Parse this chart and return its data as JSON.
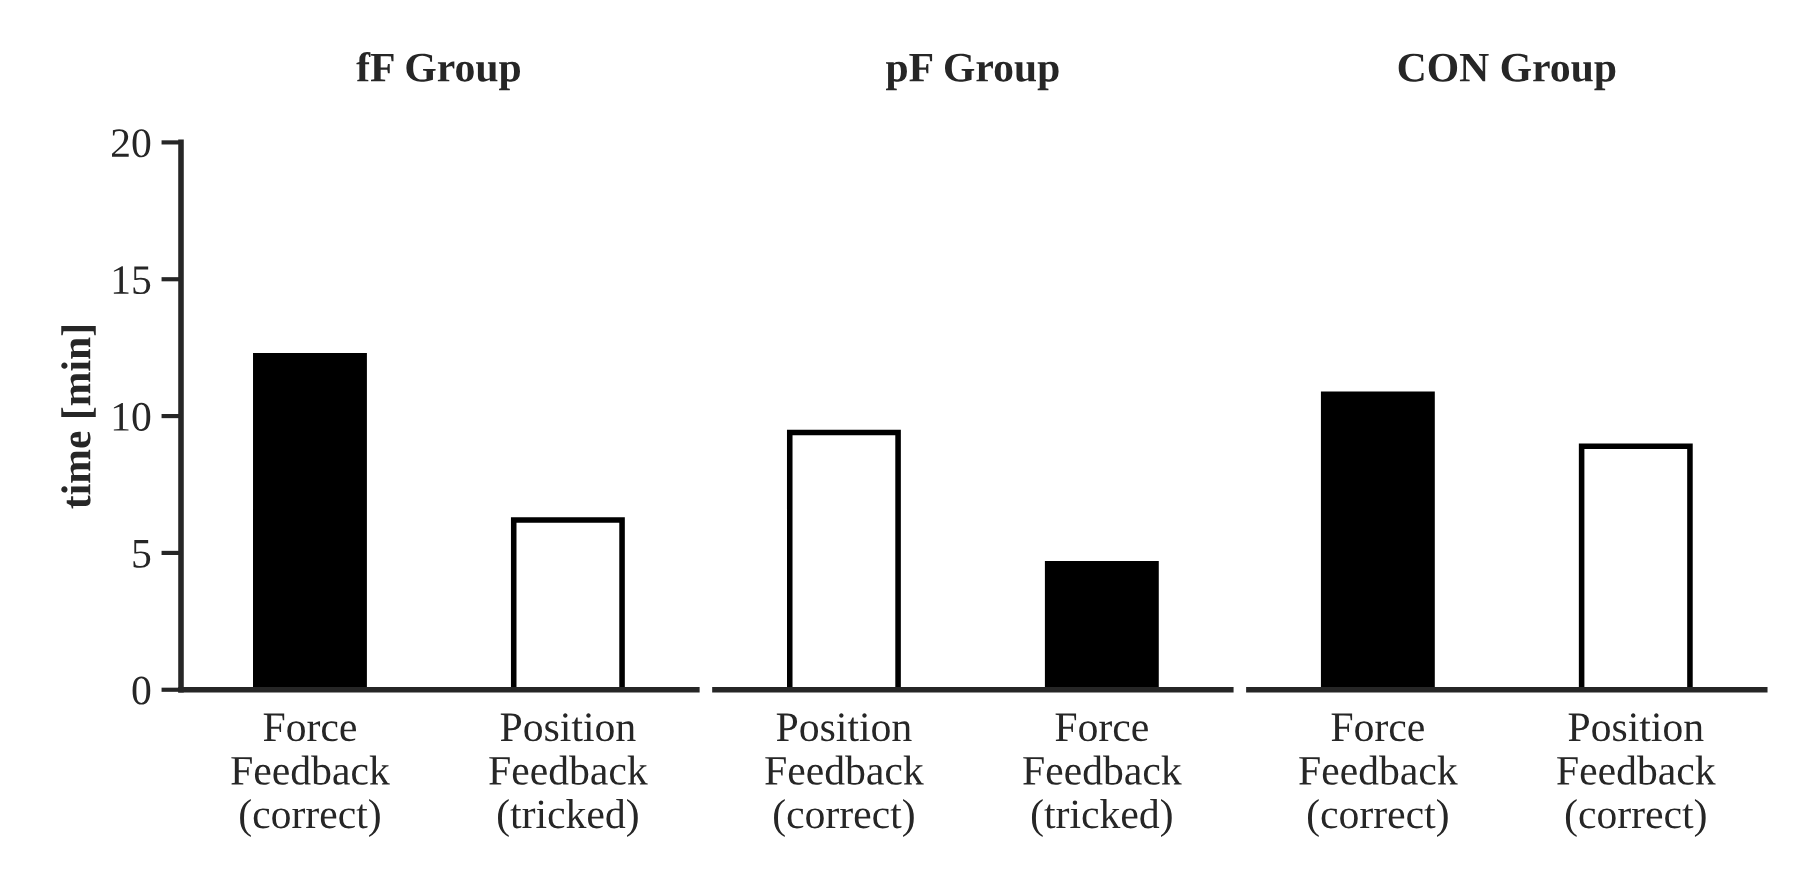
{
  "chart_data": [
    {
      "type": "bar",
      "title": "fF Group",
      "ylabel": "time [min]",
      "categories": [
        "Force\nFeedback\n(correct)",
        "Position\nFeedback\n(tricked)"
      ],
      "values": [
        12.2,
        6.2
      ],
      "colors": [
        "#000000",
        "#ffffff"
      ],
      "ylim": [
        0,
        20
      ],
      "yticks": [
        0,
        5,
        10,
        15,
        20
      ],
      "grid": false,
      "legend": false
    },
    {
      "type": "bar",
      "title": "pF Group",
      "categories": [
        "Position\nFeedback\n(correct)",
        "Force\nFeedback\n(tricked)"
      ],
      "values": [
        9.4,
        4.6
      ],
      "colors": [
        "#ffffff",
        "#000000"
      ],
      "ylim": [
        0,
        20
      ],
      "tick_labels": "x",
      "grid": false,
      "legend": false
    },
    {
      "type": "bar",
      "title": "CON Group",
      "categories": [
        "Force\nFeedback\n(correct)",
        "Position\nFeedback\n(correct)"
      ],
      "values": [
        10.8,
        8.9
      ],
      "colors": [
        "#000000",
        "#ffffff"
      ],
      "ylim": [
        0,
        20
      ],
      "tick_labels": "x",
      "grid": false,
      "legend": false
    }
  ]
}
